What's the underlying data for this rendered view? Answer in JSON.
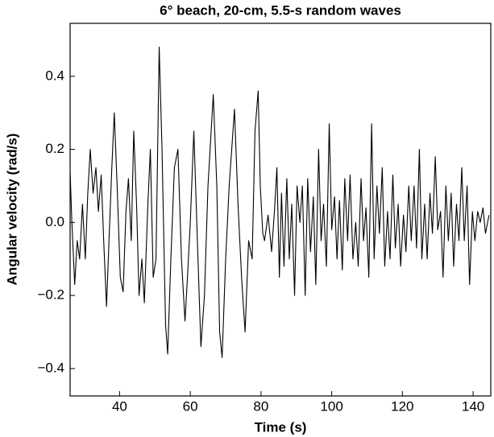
{
  "chart_data": {
    "type": "line",
    "title": "6° beach, 20-cm, 5.5-s random waves",
    "x_label": "Time (s)",
    "y_label": "Angular velocity (rad/s)",
    "color": "#000000",
    "xlim": [
      26,
      145
    ],
    "ylim": [
      -0.475,
      0.545
    ],
    "xticks": [
      40,
      60,
      80,
      100,
      120,
      140
    ],
    "yticks": [
      {
        "value": 0.4,
        "label": "0.4"
      },
      {
        "value": 0.2,
        "label": "0.2"
      },
      {
        "value": 0,
        "label": "0.0"
      },
      {
        "value": -0.2,
        "label": "−0.2"
      },
      {
        "value": -0.4,
        "label": "−0.4"
      }
    ],
    "x": [
      26,
      26.5,
      27.3,
      28,
      28.7,
      29.5,
      30.3,
      31,
      31.7,
      32.5,
      33.3,
      34,
      34.8,
      35.5,
      36.3,
      37,
      37.8,
      38.5,
      39.3,
      40.2,
      41,
      41.8,
      42.5,
      43.3,
      44,
      44.8,
      45.5,
      46.3,
      47,
      48,
      48.7,
      49.5,
      50.3,
      51.2,
      52,
      53,
      53.6,
      54.5,
      55.5,
      56.5,
      57.5,
      58.5,
      59.2,
      60,
      61,
      62,
      63,
      64,
      65,
      66.5,
      67.5,
      68.3,
      69,
      70,
      71,
      72.5,
      73.5,
      74.5,
      75.5,
      76.5,
      77.5,
      78.3,
      79.2,
      79.8,
      80.5,
      81,
      82,
      83,
      83.8,
      84.5,
      85.2,
      85.8,
      86.5,
      87.3,
      88,
      88.7,
      89.5,
      90.2,
      91,
      91.7,
      92.5,
      93.2,
      94,
      94.8,
      95.5,
      96.3,
      97,
      97.7,
      98.5,
      99.3,
      100,
      100.8,
      101.5,
      102.2,
      103,
      103.7,
      104.5,
      105.2,
      106,
      106.8,
      107.5,
      108.3,
      109,
      109.7,
      110.5,
      111.3,
      112,
      112.8,
      113.5,
      114.3,
      115,
      115.8,
      116.5,
      117.3,
      118,
      118.8,
      119.5,
      120.3,
      121,
      121.8,
      122.5,
      123.3,
      124,
      124.8,
      125.5,
      126.3,
      127,
      127.8,
      128.5,
      129.3,
      130,
      130.8,
      131.5,
      132.3,
      133,
      133.8,
      134.5,
      135.3,
      136,
      136.8,
      137.5,
      138.3,
      139,
      139.8,
      140.5,
      141.3,
      142,
      142.8,
      143.5,
      144.5
    ],
    "values": [
      0.14,
      0.0,
      -0.17,
      -0.05,
      -0.1,
      0.05,
      -0.1,
      0.08,
      0.2,
      0.08,
      0.15,
      0.03,
      0.13,
      -0.05,
      -0.23,
      -0.05,
      0.15,
      0.3,
      0.1,
      -0.15,
      -0.19,
      0.03,
      0.12,
      -0.05,
      0.25,
      0.05,
      -0.2,
      -0.1,
      -0.22,
      0.05,
      0.2,
      -0.15,
      -0.1,
      0.48,
      0.2,
      -0.28,
      -0.36,
      -0.1,
      0.15,
      0.2,
      -0.1,
      -0.27,
      -0.15,
      0.0,
      0.25,
      -0.05,
      -0.34,
      -0.2,
      0.1,
      0.35,
      0.1,
      -0.3,
      -0.37,
      -0.1,
      0.1,
      0.31,
      0.05,
      -0.15,
      -0.3,
      -0.05,
      -0.1,
      0.25,
      0.36,
      0.1,
      -0.03,
      -0.05,
      0.02,
      -0.08,
      0.03,
      0.15,
      -0.15,
      0.08,
      -0.12,
      0.12,
      -0.1,
      0.05,
      -0.2,
      0.1,
      0.0,
      0.1,
      -0.2,
      0.12,
      -0.08,
      0.07,
      -0.17,
      0.2,
      -0.05,
      0.05,
      -0.12,
      0.27,
      -0.02,
      0.07,
      -0.1,
      0.06,
      -0.13,
      0.12,
      -0.05,
      0.13,
      -0.1,
      0.0,
      -0.12,
      0.12,
      -0.05,
      0.04,
      -0.15,
      0.27,
      -0.1,
      0.1,
      -0.03,
      0.15,
      -0.12,
      0.03,
      -0.1,
      0.13,
      -0.07,
      0.05,
      -0.12,
      0.02,
      -0.08,
      0.1,
      -0.05,
      0.1,
      -0.07,
      0.2,
      -0.1,
      0.05,
      -0.1,
      0.08,
      -0.03,
      0.18,
      -0.02,
      0.03,
      -0.15,
      0.1,
      -0.05,
      0.08,
      -0.12,
      0.05,
      -0.05,
      0.15,
      -0.05,
      0.1,
      -0.17,
      0.03,
      -0.05,
      0.03,
      0.0,
      0.04,
      -0.03,
      0.02
    ]
  }
}
